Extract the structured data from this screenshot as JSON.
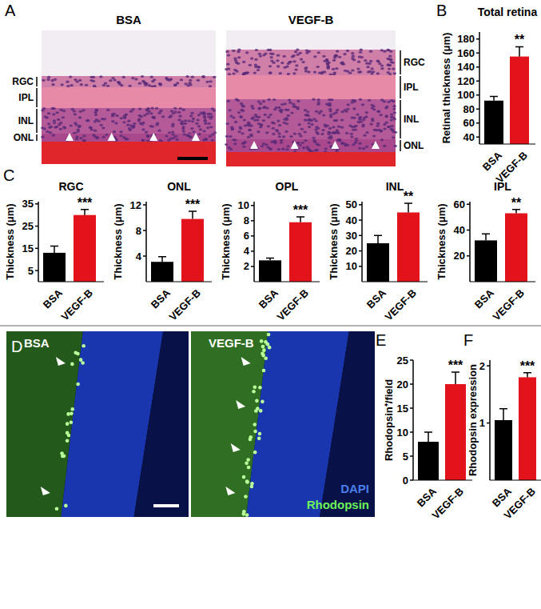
{
  "panel_labels": [
    "A",
    "B",
    "C",
    "D",
    "E",
    "F"
  ],
  "images": {
    "A": {
      "left": {
        "title": "BSA",
        "layers": [
          "RGC",
          "IPL",
          "INL",
          "ONL"
        ]
      },
      "right": {
        "title": "VEGF-B",
        "layers": [
          "RGC",
          "IPL",
          "INL",
          "ONL"
        ]
      }
    },
    "D": {
      "left": {
        "title": "BSA"
      },
      "right": {
        "title": "VEGF-B",
        "stains": [
          "DAPI",
          "Rhodopsin"
        ],
        "colors": [
          "#4a7ee8",
          "#6cf25a"
        ]
      }
    }
  },
  "chart_data": [
    {
      "type": "bar",
      "title": "Total retina",
      "y_label": "Retinal thickness (μm)",
      "categories": [
        "BSA",
        "VEGF-B"
      ],
      "values": [
        92,
        155
      ],
      "errors": [
        6,
        14
      ],
      "significance": [
        null,
        "**"
      ],
      "colors": [
        "#000000",
        "#e3131b"
      ],
      "ylim": [
        30,
        190
      ],
      "yticks": [
        40,
        60,
        80,
        100,
        120,
        140,
        160,
        180
      ]
    },
    {
      "type": "bar",
      "title": "RGC",
      "y_label": "Thickness (μm)",
      "categories": [
        "BSA",
        "VEGF-B"
      ],
      "values": [
        13,
        30
      ],
      "errors": [
        3,
        2.5
      ],
      "significance": [
        null,
        "***"
      ],
      "colors": [
        "#000000",
        "#e3131b"
      ],
      "ylim": [
        0,
        36
      ],
      "yticks": [
        5,
        15,
        25,
        35
      ]
    },
    {
      "type": "bar",
      "title": "ONL",
      "y_label": "Thickness (μm)",
      "categories": [
        "BSA",
        "VEGF-B"
      ],
      "values": [
        3.1,
        9.8
      ],
      "errors": [
        0.8,
        1.2
      ],
      "significance": [
        null,
        "***"
      ],
      "colors": [
        "#000000",
        "#e3131b"
      ],
      "ylim": [
        0,
        12.5
      ],
      "yticks": [
        4,
        8,
        12
      ]
    },
    {
      "type": "bar",
      "title": "OPL",
      "y_label": "Thickness (μm)",
      "categories": [
        "BSA",
        "VEGF-B"
      ],
      "values": [
        2.8,
        7.8
      ],
      "errors": [
        0.3,
        0.7
      ],
      "significance": [
        null,
        "***"
      ],
      "colors": [
        "#000000",
        "#e3131b"
      ],
      "ylim": [
        0,
        10.5
      ],
      "yticks": [
        2,
        4,
        6,
        8,
        10
      ]
    },
    {
      "type": "bar",
      "title": "INL",
      "y_label": "Thickness (μm)",
      "categories": [
        "BSA",
        "VEGF-B"
      ],
      "values": [
        25,
        45
      ],
      "errors": [
        5,
        6
      ],
      "significance": [
        null,
        "**"
      ],
      "colors": [
        "#000000",
        "#e3131b"
      ],
      "ylim": [
        0,
        52
      ],
      "yticks": [
        10,
        20,
        30,
        40,
        50
      ]
    },
    {
      "type": "bar",
      "title": "IPL",
      "y_label": "Thickness (μm)",
      "categories": [
        "BSA",
        "VEGF-B"
      ],
      "values": [
        32,
        53
      ],
      "errors": [
        5,
        3
      ],
      "significance": [
        null,
        "**"
      ],
      "colors": [
        "#000000",
        "#e3131b"
      ],
      "ylim": [
        0,
        62
      ],
      "yticks": [
        20,
        40,
        60
      ]
    },
    {
      "type": "bar",
      "y_label": "Rhodopsin⁺/field",
      "categories": [
        "BSA",
        "VEGF-B"
      ],
      "values": [
        8,
        20
      ],
      "errors": [
        2,
        2.5
      ],
      "significance": [
        null,
        "***"
      ],
      "colors": [
        "#000000",
        "#e3131b"
      ],
      "ylim": [
        0,
        25
      ],
      "yticks": [
        0,
        5,
        10,
        15,
        20,
        25
      ]
    },
    {
      "type": "bar",
      "y_label": "Rhodopsin expression",
      "categories": [
        "BSA",
        "VEGF-B"
      ],
      "values": [
        1.05,
        1.8
      ],
      "errors": [
        0.2,
        0.08
      ],
      "significance": [
        null,
        "***"
      ],
      "colors": [
        "#000000",
        "#e3131b"
      ],
      "ylim": [
        0,
        2.1
      ],
      "yticks": [
        1,
        2
      ]
    }
  ]
}
